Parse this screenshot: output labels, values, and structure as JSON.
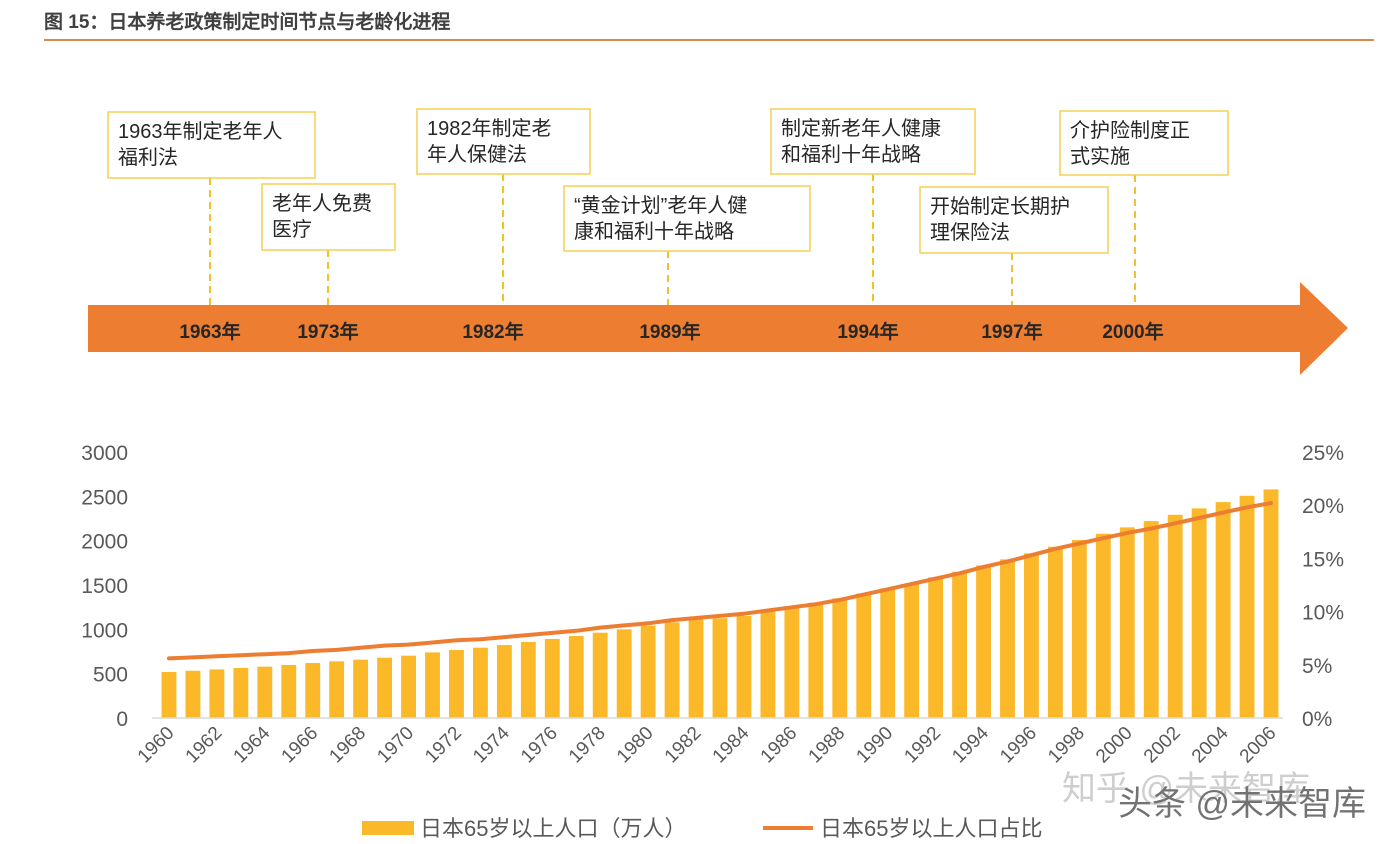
{
  "title": "图 15：日本养老政策制定时间节点与老龄化进程",
  "timeline": {
    "events": [
      {
        "year_label": "1963年",
        "lines": [
          "1963年制定老年人",
          "福利法"
        ]
      },
      {
        "year_label": "1973年",
        "lines": [
          "老年人免费",
          "医疗"
        ]
      },
      {
        "year_label": "1982年",
        "lines": [
          "1982年制定老",
          "年人保健法"
        ]
      },
      {
        "year_label": "1989年",
        "lines": [
          "“黄金计划”老年人健",
          "康和福利十年战略"
        ]
      },
      {
        "year_label": "1994年",
        "lines": [
          "制定新老年人健康",
          "和福利十年战略"
        ]
      },
      {
        "year_label": "1997年",
        "lines": [
          "开始制定长期护",
          "理保险法"
        ]
      },
      {
        "year_label": "2000年",
        "lines": [
          "介护险制度正",
          "式实施"
        ]
      }
    ],
    "colors": {
      "arrow": "#ed7d31",
      "box_border": "#f5cf55",
      "connector": "#f2c12e"
    }
  },
  "watermark": {
    "line1": "知乎 @未来智库",
    "line2": "头条 @未来智库"
  },
  "chart_data": {
    "type": "bar+line",
    "categories": [
      1960,
      1961,
      1962,
      1963,
      1964,
      1965,
      1966,
      1967,
      1968,
      1969,
      1970,
      1971,
      1972,
      1973,
      1974,
      1975,
      1976,
      1977,
      1978,
      1979,
      1980,
      1981,
      1982,
      1983,
      1984,
      1985,
      1986,
      1987,
      1988,
      1989,
      1990,
      1991,
      1992,
      1993,
      1994,
      1995,
      1996,
      1997,
      1998,
      1999,
      2000,
      2001,
      2002,
      2003,
      2004,
      2005,
      2006
    ],
    "x_tick_labels": [
      "1960",
      "1962",
      "1964",
      "1966",
      "1968",
      "1970",
      "1972",
      "1974",
      "1976",
      "1978",
      "1980",
      "1982",
      "1984",
      "1986",
      "1988",
      "1990",
      "1992",
      "1994",
      "1996",
      "1998",
      "2000",
      "2002",
      "2004",
      "2006"
    ],
    "series": [
      {
        "name": "日本65岁以上人口（万人）",
        "type": "bar",
        "axis": "left",
        "color": "#fbb829",
        "values": [
          519,
          533,
          548,
          564,
          579,
          598,
          620,
          639,
          658,
          680,
          703,
          740,
          767,
          793,
          823,
          857,
          891,
          925,
          962,
          1000,
          1041,
          1079,
          1113,
          1125,
          1150,
          1199,
          1255,
          1300,
          1349,
          1405,
          1462,
          1518,
          1586,
          1650,
          1721,
          1789,
          1857,
          1932,
          2007,
          2078,
          2150,
          2221,
          2292,
          2364,
          2435,
          2506,
          2578
        ]
      },
      {
        "name": "日本65岁以上人口占比",
        "type": "line",
        "axis": "right",
        "color": "#ed7d31",
        "values": [
          5.6,
          5.7,
          5.8,
          5.9,
          6.0,
          6.1,
          6.3,
          6.4,
          6.6,
          6.8,
          6.9,
          7.1,
          7.3,
          7.4,
          7.6,
          7.8,
          8.0,
          8.2,
          8.5,
          8.7,
          8.9,
          9.2,
          9.4,
          9.6,
          9.8,
          10.1,
          10.4,
          10.7,
          11.1,
          11.6,
          12.1,
          12.6,
          13.1,
          13.6,
          14.2,
          14.7,
          15.3,
          15.9,
          16.4,
          16.9,
          17.4,
          17.8,
          18.3,
          18.8,
          19.3,
          19.8,
          20.2
        ]
      }
    ],
    "y_left": {
      "ylim": [
        0,
        3000
      ],
      "ticks": [
        "0",
        "500",
        "1000",
        "1500",
        "2000",
        "2500",
        "3000"
      ]
    },
    "y_right": {
      "ylim": [
        0,
        25
      ],
      "ticks": [
        "0%",
        "5%",
        "10%",
        "15%",
        "20%",
        "25%"
      ]
    },
    "legend": {
      "placement": "bottom",
      "items": [
        "日本65岁以上人口（万人）",
        "日本65岁以上人口占比"
      ]
    },
    "grid": false
  }
}
